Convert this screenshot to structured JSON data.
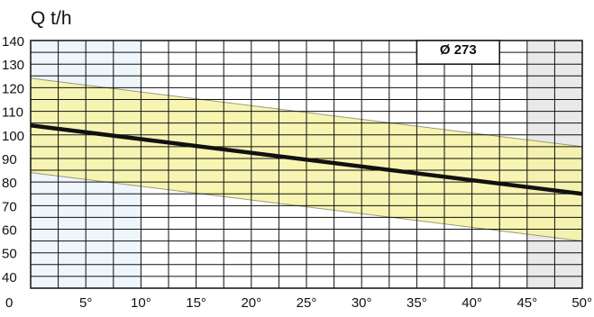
{
  "chart_data": {
    "type": "line",
    "title": "",
    "ylabel": "Q t/h",
    "xlabel": "",
    "x_unit_suffix": "°",
    "xlim": [
      0,
      50
    ],
    "ylim": [
      35,
      140
    ],
    "x_ticks": [
      0,
      5,
      10,
      15,
      20,
      25,
      30,
      35,
      40,
      45,
      50
    ],
    "y_ticks": [
      40,
      50,
      60,
      70,
      80,
      90,
      100,
      110,
      120,
      130,
      140
    ],
    "x_grid_step": 2.5,
    "y_grid_step": 5,
    "grid": true,
    "annotation": "Ø 273",
    "shaded_x_regions": [
      {
        "from": 0,
        "to": 10,
        "color": "#eef5fb"
      },
      {
        "from": 45,
        "to": 50,
        "color": "#e9e9e9"
      }
    ],
    "band": {
      "color": "#f7f3a4",
      "edge_color": "#9a9a7a",
      "upper": {
        "x": [
          0,
          50
        ],
        "y": [
          124,
          95
        ]
      },
      "lower": {
        "x": [
          0,
          50
        ],
        "y": [
          84,
          55
        ]
      }
    },
    "series": [
      {
        "x": [
          0,
          50
        ],
        "y": [
          104,
          75
        ],
        "color": "#111111"
      }
    ]
  }
}
